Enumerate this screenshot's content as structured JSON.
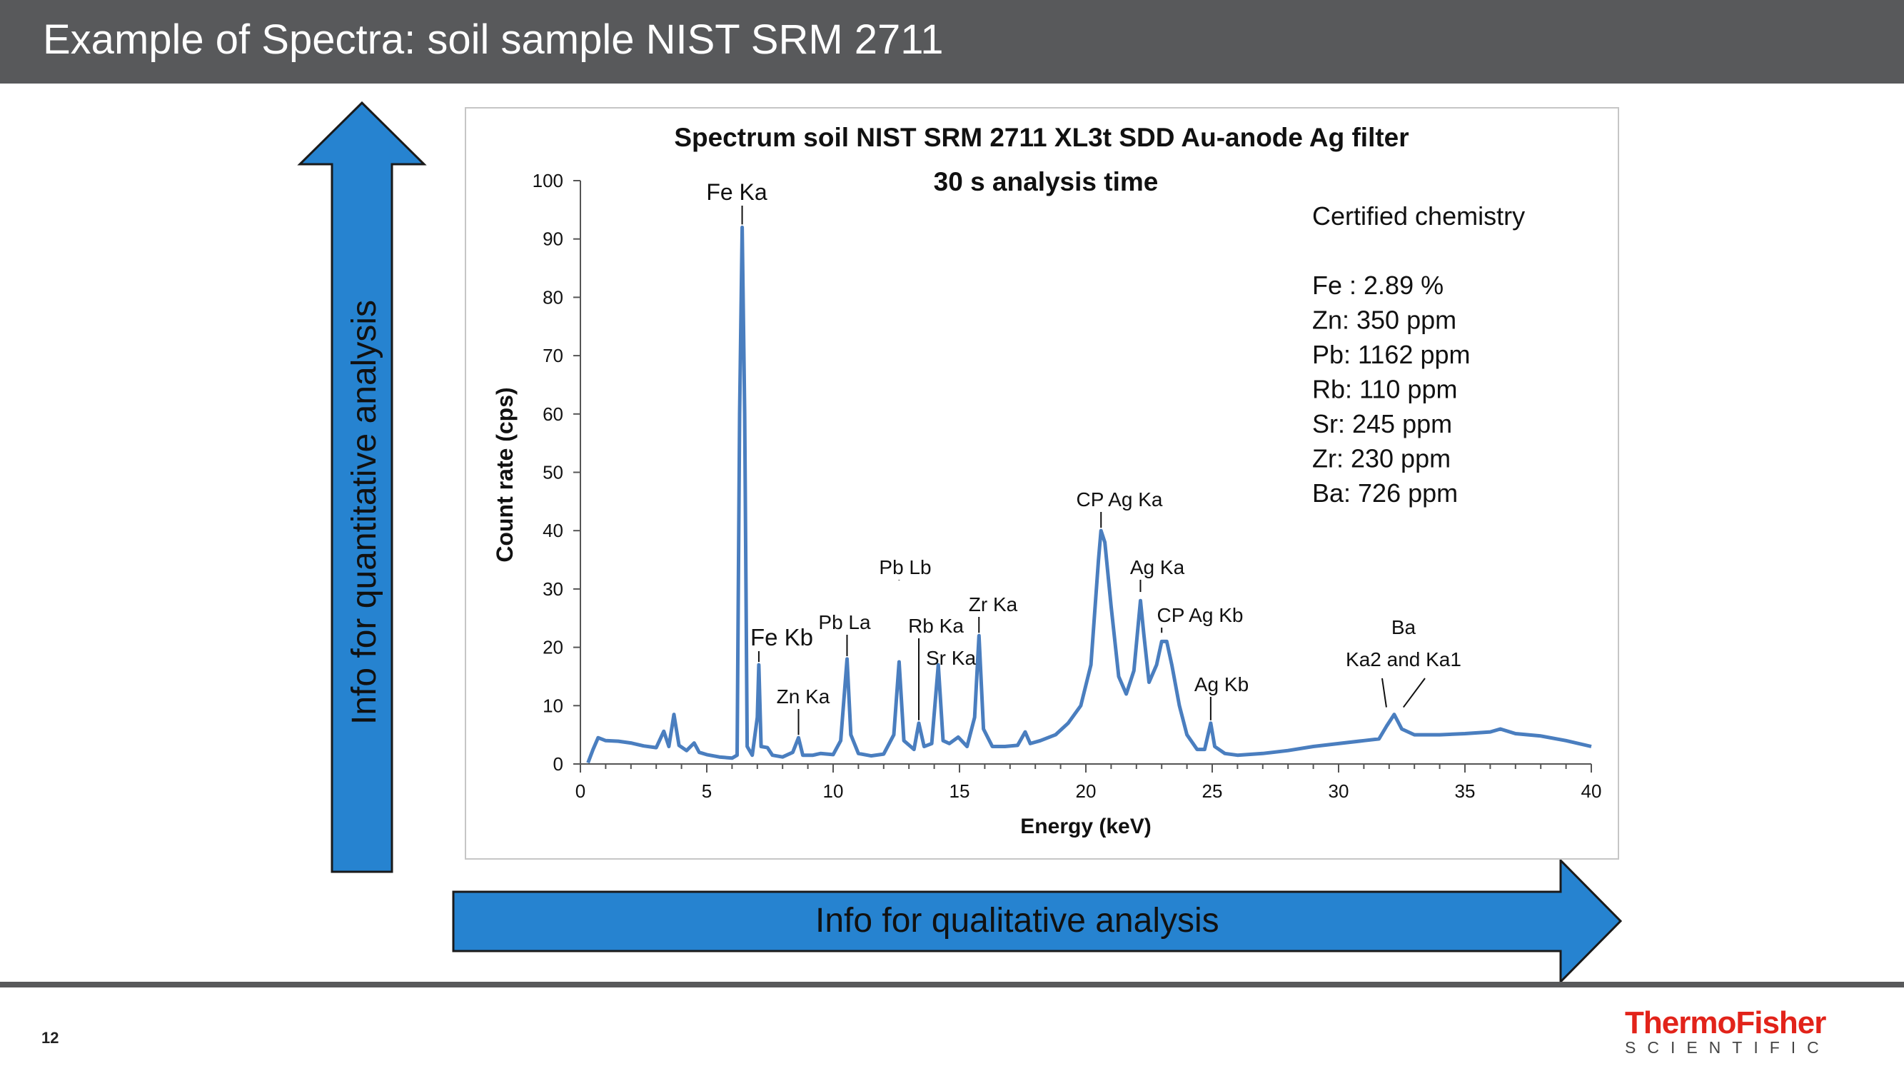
{
  "slide": {
    "title": "Example of Spectra: soil sample NIST SRM 2711",
    "page_number": "12",
    "qualitative_label": "Info for qualitative analysis",
    "quantitative_label": "Info for quantitative analysis"
  },
  "logo": {
    "main": "ThermoFisher",
    "sub": "SCIENTIFIC"
  },
  "colors": {
    "title_bar": "#58595b",
    "arrow": "#2683d0",
    "series": "#4a7ebf",
    "logo_red": "#e2231a"
  },
  "chart_data": {
    "type": "line",
    "title": "Spectrum soil NIST SRM 2711 XL3t SDD Au-anode Ag filter",
    "subtitle": "30 s analysis time",
    "xlabel": "Energy (keV)",
    "ylabel": "Count rate (cps)",
    "xlim": [
      0,
      40
    ],
    "ylim": [
      0,
      100
    ],
    "xticks": [
      "0",
      "5",
      "10",
      "15",
      "20",
      "25",
      "30",
      "35",
      "40"
    ],
    "yticks": [
      "0",
      "10",
      "20",
      "30",
      "40",
      "50",
      "60",
      "70",
      "80",
      "90",
      "100"
    ],
    "grid": false,
    "legend": "none",
    "certified": {
      "heading": "Certified chemistry",
      "lines": [
        "Fe : 2.89 %",
        "Zn: 350 ppm",
        "Pb: 1162 ppm",
        "Rb: 110 ppm",
        "Sr: 245 ppm",
        "Zr: 230 ppm",
        "Ba: 726 ppm"
      ]
    },
    "annotations": [
      {
        "label": "Fe Ka",
        "x": 6.4,
        "y": 92
      },
      {
        "label": "Fe Kb",
        "x": 7.06,
        "y": 17
      },
      {
        "label": "Zn Ka",
        "x": 8.63,
        "y": 4.5
      },
      {
        "label": "Pb La",
        "x": 10.55,
        "y": 18
      },
      {
        "label": "Pb Lb",
        "x": 12.61,
        "y": 31
      },
      {
        "label": "Rb Ka",
        "x": 13.39,
        "y": 7
      },
      {
        "label": "Sr Ka",
        "x": 14.16,
        "y": 17
      },
      {
        "label": "Zr Ka",
        "x": 15.77,
        "y": 22
      },
      {
        "label": "CP Ag Ka",
        "x": 20.6,
        "y": 40
      },
      {
        "label": "Ag Ka",
        "x": 22.16,
        "y": 29
      },
      {
        "label": "CP Ag Kb",
        "x": 23.0,
        "y": 22
      },
      {
        "label": "Ag Kb",
        "x": 24.94,
        "y": 7
      },
      {
        "label": "Ba",
        "x": 32.0,
        "y": 8.5
      },
      {
        "label": "Ka2 and Ka1",
        "x": 32.0,
        "y": 8.5
      }
    ],
    "series": [
      {
        "values": [
          [
            0.3,
            0.2
          ],
          [
            0.5,
            2.5
          ],
          [
            0.7,
            4.5
          ],
          [
            1,
            4
          ],
          [
            1.5,
            3.9
          ],
          [
            2,
            3.6
          ],
          [
            2.5,
            3.1
          ],
          [
            3,
            2.8
          ],
          [
            3.3,
            5.6
          ],
          [
            3.5,
            3.0
          ],
          [
            3.7,
            8.5
          ],
          [
            3.9,
            3.2
          ],
          [
            4.2,
            2.3
          ],
          [
            4.5,
            3.6
          ],
          [
            4.7,
            2.0
          ],
          [
            5,
            1.6
          ],
          [
            5.5,
            1.2
          ],
          [
            6,
            1.0
          ],
          [
            6.2,
            1.5
          ],
          [
            6.3,
            60
          ],
          [
            6.4,
            92
          ],
          [
            6.5,
            60
          ],
          [
            6.6,
            3
          ],
          [
            6.8,
            1.5
          ],
          [
            7.0,
            8
          ],
          [
            7.06,
            17
          ],
          [
            7.15,
            3
          ],
          [
            7.4,
            2.8
          ],
          [
            7.6,
            1.5
          ],
          [
            8.0,
            1.2
          ],
          [
            8.4,
            2
          ],
          [
            8.63,
            4.5
          ],
          [
            8.8,
            1.5
          ],
          [
            9.2,
            1.5
          ],
          [
            9.5,
            1.8
          ],
          [
            10.0,
            1.6
          ],
          [
            10.3,
            4
          ],
          [
            10.55,
            18
          ],
          [
            10.7,
            5
          ],
          [
            11.0,
            1.8
          ],
          [
            11.5,
            1.4
          ],
          [
            12.0,
            1.7
          ],
          [
            12.4,
            5
          ],
          [
            12.61,
            17.5
          ],
          [
            12.8,
            4
          ],
          [
            13.2,
            2.5
          ],
          [
            13.39,
            7
          ],
          [
            13.6,
            3
          ],
          [
            13.9,
            3.5
          ],
          [
            14.16,
            17
          ],
          [
            14.35,
            4
          ],
          [
            14.6,
            3.5
          ],
          [
            14.95,
            4.6
          ],
          [
            15.3,
            3
          ],
          [
            15.6,
            8
          ],
          [
            15.77,
            22
          ],
          [
            15.95,
            6
          ],
          [
            16.3,
            3
          ],
          [
            16.8,
            3
          ],
          [
            17.3,
            3.2
          ],
          [
            17.6,
            5.5
          ],
          [
            17.8,
            3.5
          ],
          [
            18.2,
            4
          ],
          [
            18.8,
            5
          ],
          [
            19.3,
            7
          ],
          [
            19.8,
            10
          ],
          [
            20.2,
            17
          ],
          [
            20.5,
            35
          ],
          [
            20.6,
            40
          ],
          [
            20.75,
            38
          ],
          [
            21.0,
            27
          ],
          [
            21.3,
            15
          ],
          [
            21.6,
            12
          ],
          [
            21.9,
            16
          ],
          [
            22.16,
            28
          ],
          [
            22.3,
            22
          ],
          [
            22.5,
            14
          ],
          [
            22.8,
            17
          ],
          [
            23.0,
            21
          ],
          [
            23.2,
            21
          ],
          [
            23.4,
            17
          ],
          [
            23.7,
            10
          ],
          [
            24.0,
            5
          ],
          [
            24.4,
            2.5
          ],
          [
            24.7,
            2.5
          ],
          [
            24.94,
            7
          ],
          [
            25.1,
            3
          ],
          [
            25.5,
            1.8
          ],
          [
            26.0,
            1.5
          ],
          [
            27,
            1.8
          ],
          [
            28,
            2.3
          ],
          [
            29,
            3
          ],
          [
            30,
            3.5
          ],
          [
            31,
            4
          ],
          [
            31.6,
            4.3
          ],
          [
            31.9,
            6.5
          ],
          [
            32.2,
            8.5
          ],
          [
            32.5,
            6
          ],
          [
            33,
            5
          ],
          [
            34,
            5
          ],
          [
            35,
            5.2
          ],
          [
            36,
            5.5
          ],
          [
            36.4,
            6
          ],
          [
            37,
            5.2
          ],
          [
            38,
            4.8
          ],
          [
            39,
            4
          ],
          [
            40,
            3
          ]
        ]
      }
    ]
  }
}
